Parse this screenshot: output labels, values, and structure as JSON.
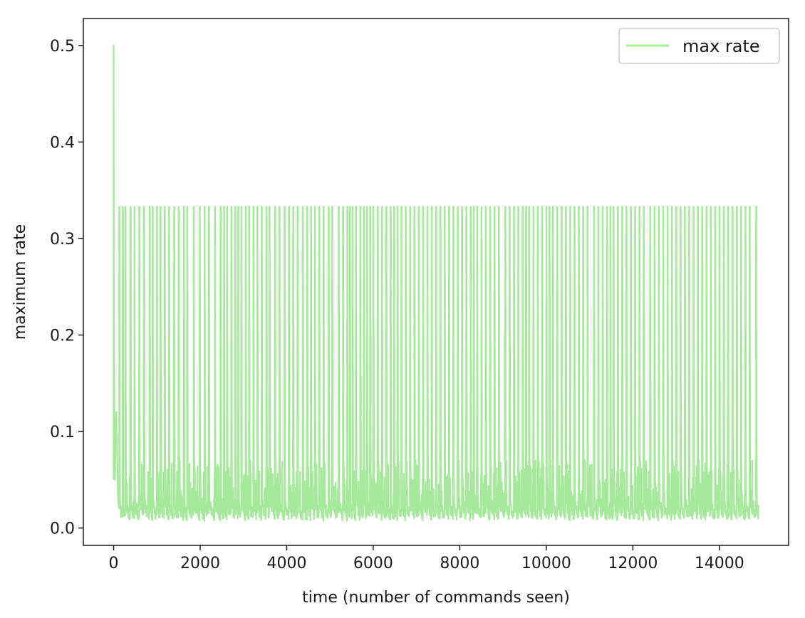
{
  "chart_data": {
    "type": "line",
    "title": "",
    "xlabel": "time (number of commands seen)",
    "ylabel": "maximum rate",
    "xlim": [
      -700,
      15600
    ],
    "ylim": [
      -0.018,
      0.528
    ],
    "xticks": [
      0,
      2000,
      4000,
      6000,
      8000,
      10000,
      12000,
      14000
    ],
    "xtick_labels": [
      "0",
      "2000",
      "4000",
      "6000",
      "8000",
      "10000",
      "12000",
      "14000"
    ],
    "yticks": [
      0.0,
      0.1,
      0.2,
      0.3,
      0.4,
      0.5
    ],
    "ytick_labels": [
      "0.0",
      "0.1",
      "0.2",
      "0.3",
      "0.4",
      "0.5"
    ],
    "grid": false,
    "legend": {
      "position": "top-right",
      "entries": [
        "max rate"
      ]
    },
    "series": [
      {
        "name": "max rate",
        "color": "#a6e89c",
        "x_start": 0,
        "x_end": 14900,
        "initial_points": [
          [
            0,
            0.05
          ],
          [
            0,
            0.5
          ],
          [
            10,
            0.2
          ],
          [
            30,
            0.05
          ],
          [
            60,
            0.12
          ],
          [
            100,
            0.03
          ],
          [
            130,
            0.02
          ]
        ],
        "spike_times": [
          130,
          210,
          270,
          390,
          480,
          590,
          700,
          830,
          900,
          1000,
          1080,
          1180,
          1280,
          1400,
          1500,
          1620,
          1700,
          1850,
          1990,
          2100,
          2200,
          2340,
          2470,
          2550,
          2620,
          2720,
          2810,
          2880,
          2950,
          3050,
          3130,
          3230,
          3320,
          3420,
          3530,
          3600,
          3730,
          3830,
          3950,
          4050,
          4150,
          4250,
          4370,
          4470,
          4560,
          4650,
          4750,
          4850,
          4970,
          5050,
          5200,
          5300,
          5400,
          5460,
          5520,
          5600,
          5700,
          5780,
          5850,
          5930,
          6000,
          6100,
          6200,
          6300,
          6400,
          6480,
          6560,
          6650,
          6750,
          6850,
          6950,
          7050,
          7150,
          7250,
          7350,
          7450,
          7550,
          7650,
          7750,
          7850,
          7950,
          8050,
          8150,
          8250,
          8320,
          8400,
          8500,
          8600,
          8700,
          8800,
          8900,
          9050,
          9150,
          9250,
          9350,
          9450,
          9530,
          9600,
          9700,
          9800,
          9900,
          10000,
          10070,
          10150,
          10250,
          10350,
          10450,
          10550,
          10650,
          10750,
          10850,
          10950,
          11100,
          11200,
          11300,
          11400,
          11480,
          11550,
          11650,
          11750,
          11850,
          11950,
          12050,
          12150,
          12250,
          12400,
          12500,
          12600,
          12700,
          12800,
          12900,
          13000,
          13100,
          13200,
          13300,
          13400,
          13500,
          13600,
          13700,
          13800,
          13900,
          14000,
          14100,
          14200,
          14300,
          14400,
          14500,
          14600,
          14700,
          14850
        ],
        "peak": 0.333,
        "baseline_range": [
          0.006,
          0.07
        ],
        "end_value": 0.024
      }
    ]
  }
}
